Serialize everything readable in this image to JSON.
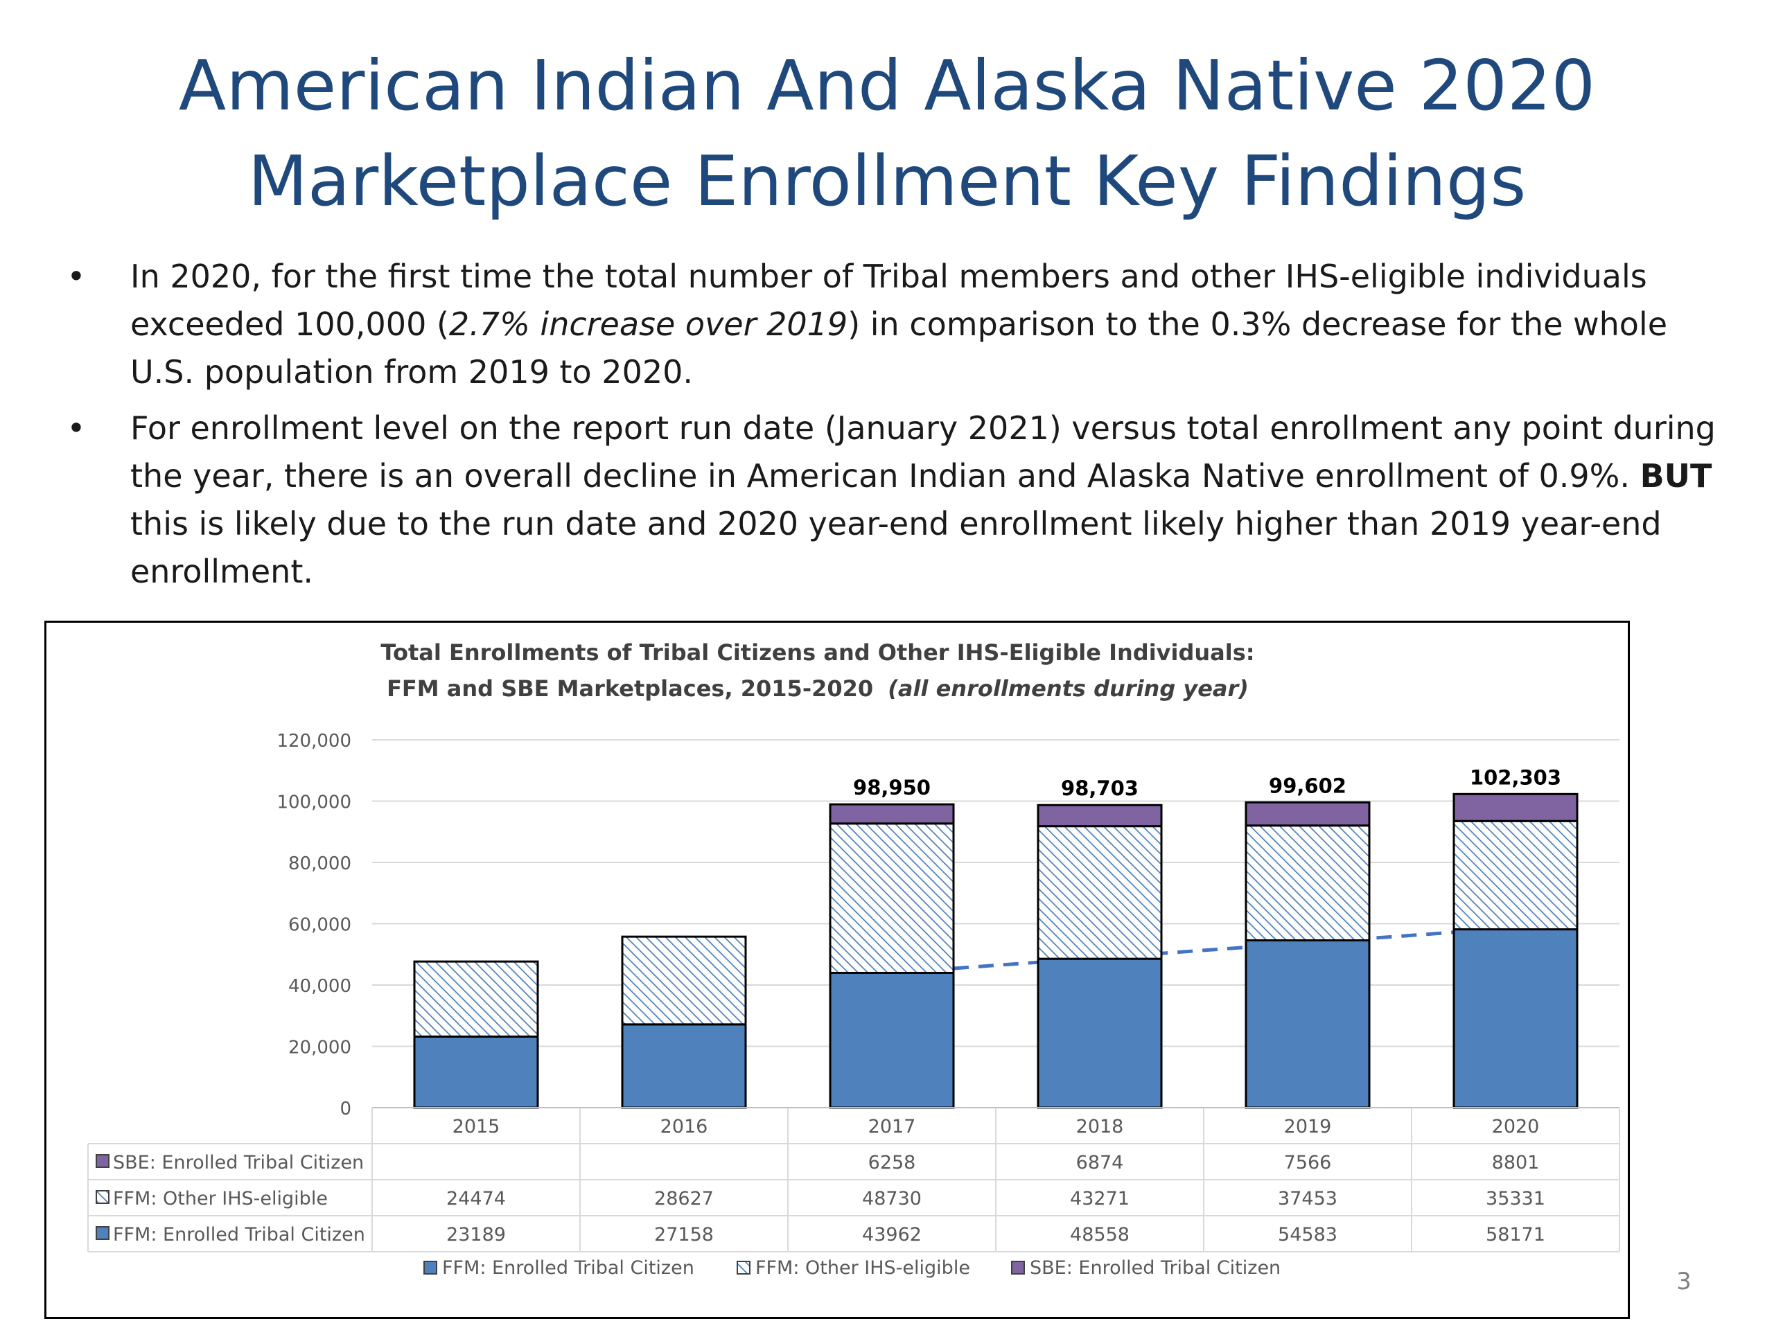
{
  "slide": {
    "title_line1": "American Indian And Alaska Native 2020",
    "title_line2": "Marketplace Enrollment Key Findings",
    "page_number": "3"
  },
  "bullets": [
    {
      "marker": "•",
      "part1": "In 2020, for the first time the total number of Tribal members and other IHS-eligible individuals exceeded 100,000 (",
      "italic": "2.7% increase over 2019",
      "part2": ") in comparison to the 0.3% decrease for the whole U.S. population from 2019 to 2020."
    },
    {
      "marker": "•",
      "part1": "For enrollment level on the report run date (January 2021) versus total enrollment any point during the year, there is an overall decline in American Indian and Alaska Native enrollment of 0.9%. ",
      "bold": "BUT",
      "part2": " this is likely due to the run date and 2020 year-end enrollment likely higher than 2019 year-end enrollment."
    }
  ],
  "chart_data": {
    "type": "bar",
    "stacked": true,
    "title_line1": "Total Enrollments of Tribal Citizens and Other IHS-Eligible Individuals:",
    "title_line2": "FFM and SBE Marketplaces, 2015-2020",
    "title_italic": "(all enrollments during year)",
    "categories": [
      "2015",
      "2016",
      "2017",
      "2018",
      "2019",
      "2020"
    ],
    "ylim": [
      0,
      120000
    ],
    "yticks": [
      0,
      20000,
      40000,
      60000,
      80000,
      100000,
      120000
    ],
    "ytick_labels": [
      "0",
      "20,000",
      "40,000",
      "60,000",
      "80,000",
      "100,000",
      "120,000"
    ],
    "grid": true,
    "legend_position": "bottom",
    "series": [
      {
        "name": "FFM: Enrolled Tribal Citizen",
        "values": [
          23189,
          27158,
          43962,
          48558,
          54583,
          58171
        ],
        "color": "#4f81bd",
        "pattern": "solid"
      },
      {
        "name": "FFM: Other IHS-eligible",
        "values": [
          24474,
          28627,
          48730,
          43271,
          37453,
          35331
        ],
        "color": "#4f81bd",
        "pattern": "hatched"
      },
      {
        "name": "SBE: Enrolled Tribal Citizen",
        "values": [
          null,
          null,
          6258,
          6874,
          7566,
          8801
        ],
        "color": "#8064a2",
        "pattern": "solid"
      }
    ],
    "totals": [
      null,
      null,
      "98,950",
      "98,703",
      "99,602",
      "102,303"
    ],
    "trendline": {
      "series": "FFM: Enrolled Tribal Citizen",
      "from_category": "2017",
      "to_category": "2020",
      "style": "dashed",
      "color": "#4472c4"
    },
    "data_table": {
      "rows": [
        {
          "label": "SBE: Enrolled Tribal Citizen",
          "cells": [
            "",
            "",
            "6258",
            "6874",
            "7566",
            "8801"
          ]
        },
        {
          "label": "FFM: Other IHS-eligible",
          "cells": [
            "24474",
            "28627",
            "48730",
            "43271",
            "37453",
            "35331"
          ]
        },
        {
          "label": "FFM: Enrolled Tribal Citizen",
          "cells": [
            "23189",
            "27158",
            "43962",
            "48558",
            "54583",
            "58171"
          ]
        }
      ]
    },
    "legend": [
      "FFM: Enrolled Tribal Citizen",
      "FFM: Other IHS-eligible",
      "SBE: Enrolled Tribal Citizen"
    ]
  }
}
